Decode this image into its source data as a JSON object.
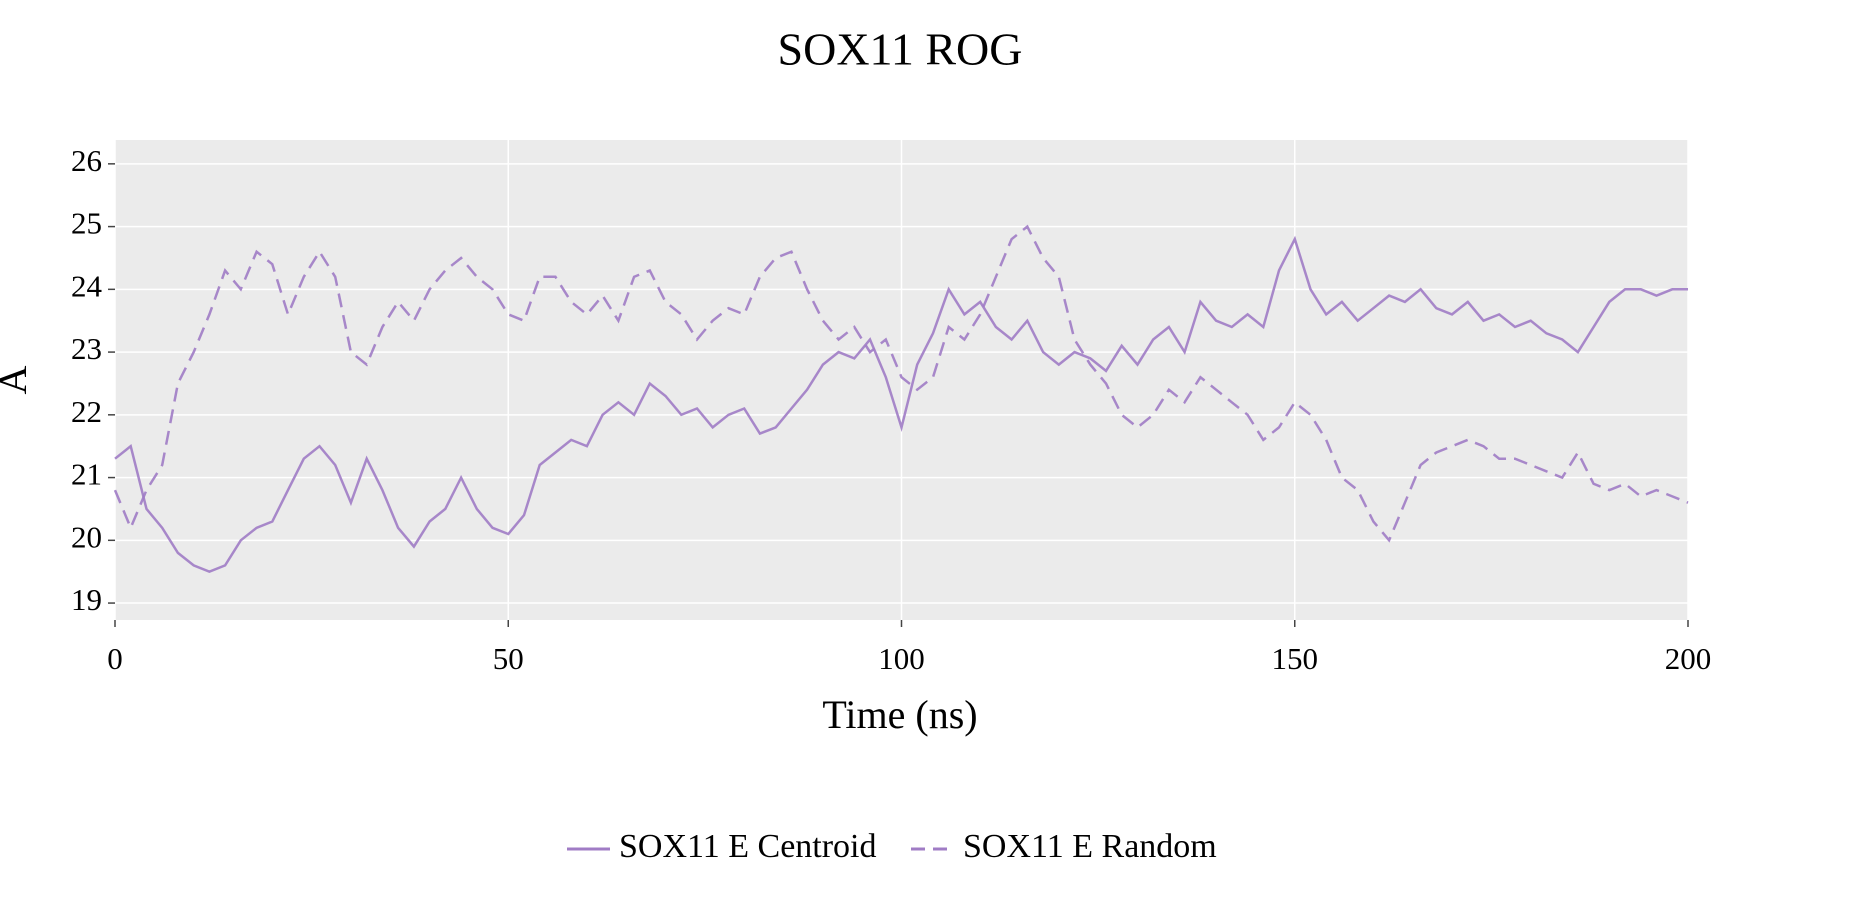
{
  "chart_data": {
    "type": "line",
    "title": "SOX11 ROG",
    "x_label": "Time (ns)",
    "y_label": "A",
    "x": [
      0,
      2,
      4,
      6,
      8,
      10,
      12,
      14,
      16,
      18,
      20,
      22,
      24,
      26,
      28,
      30,
      32,
      34,
      36,
      38,
      40,
      42,
      44,
      46,
      48,
      50,
      52,
      54,
      56,
      58,
      60,
      62,
      64,
      66,
      68,
      70,
      72,
      74,
      76,
      78,
      80,
      82,
      84,
      86,
      88,
      90,
      92,
      94,
      96,
      98,
      100,
      102,
      104,
      106,
      108,
      110,
      112,
      114,
      116,
      118,
      120,
      122,
      124,
      126,
      128,
      130,
      132,
      134,
      136,
      138,
      140,
      142,
      144,
      146,
      148,
      150,
      152,
      154,
      156,
      158,
      160,
      162,
      164,
      166,
      168,
      170,
      172,
      174,
      176,
      178,
      180,
      182,
      184,
      186,
      188,
      190,
      192,
      194,
      196,
      198,
      200
    ],
    "series": [
      {
        "name": "SOX11 E Centroid",
        "color": "#a07cc5",
        "dash": "solid",
        "values": [
          21.3,
          21.5,
          20.5,
          20.2,
          19.8,
          19.6,
          19.5,
          19.6,
          20.0,
          20.2,
          20.3,
          20.8,
          21.3,
          21.5,
          21.2,
          20.6,
          21.3,
          20.8,
          20.2,
          19.9,
          20.3,
          20.5,
          21.0,
          20.5,
          20.2,
          20.1,
          20.4,
          21.2,
          21.4,
          21.6,
          21.5,
          22.0,
          22.2,
          22.0,
          22.5,
          22.3,
          22.0,
          22.1,
          21.8,
          22.0,
          22.1,
          21.7,
          21.8,
          22.1,
          22.4,
          22.8,
          23.0,
          22.9,
          23.2,
          22.6,
          21.8,
          22.8,
          23.3,
          24.0,
          23.6,
          23.8,
          23.4,
          23.2,
          23.5,
          23.0,
          22.8,
          23.0,
          22.9,
          22.7,
          23.1,
          22.8,
          23.2,
          23.4,
          23.0,
          23.8,
          23.5,
          23.4,
          23.6,
          23.4,
          24.3,
          24.8,
          24.0,
          23.6,
          23.8,
          23.5,
          23.7,
          23.9,
          23.8,
          24.0,
          23.7,
          23.6,
          23.8,
          23.5,
          23.6,
          23.4,
          23.5,
          23.3,
          23.2,
          23.0,
          23.4,
          23.8,
          24.0,
          24.0,
          23.9,
          24.0,
          24.0
        ]
      },
      {
        "name": "SOX11 E Random",
        "color": "#a07cc5",
        "dash": "dashed",
        "values": [
          20.8,
          20.2,
          20.8,
          21.2,
          22.5,
          23.0,
          23.6,
          24.3,
          24.0,
          24.6,
          24.4,
          23.6,
          24.2,
          24.6,
          24.2,
          23.0,
          22.8,
          23.4,
          23.8,
          23.5,
          24.0,
          24.3,
          24.5,
          24.2,
          24.0,
          23.6,
          23.5,
          24.2,
          24.2,
          23.8,
          23.6,
          23.9,
          23.5,
          24.2,
          24.3,
          23.8,
          23.6,
          23.2,
          23.5,
          23.7,
          23.6,
          24.2,
          24.5,
          24.6,
          24.0,
          23.5,
          23.2,
          23.4,
          23.0,
          23.2,
          22.6,
          22.4,
          22.6,
          23.4,
          23.2,
          23.6,
          24.2,
          24.8,
          25.0,
          24.5,
          24.2,
          23.2,
          22.8,
          22.5,
          22.0,
          21.8,
          22.0,
          22.4,
          22.2,
          22.6,
          22.4,
          22.2,
          22.0,
          21.6,
          21.8,
          22.2,
          22.0,
          21.6,
          21.0,
          20.8,
          20.3,
          20.0,
          20.6,
          21.2,
          21.4,
          21.5,
          21.6,
          21.5,
          21.3,
          21.3,
          21.2,
          21.1,
          21.0,
          21.4,
          20.9,
          20.8,
          20.9,
          20.7,
          20.8,
          20.7,
          20.6
        ]
      }
    ],
    "xlim": [
      0,
      200
    ],
    "ylim": [
      18.73,
      26.38
    ],
    "xticks": [
      0,
      50,
      100,
      150,
      200
    ],
    "yticks": [
      19,
      20,
      21,
      22,
      23,
      24,
      25,
      26
    ],
    "grid": true,
    "legend": "bottom"
  }
}
